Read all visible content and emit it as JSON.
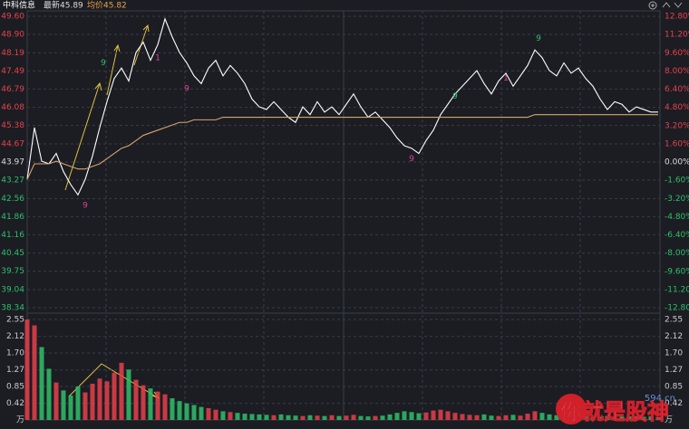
{
  "chart_data": [
    {
      "type": "line",
      "title": "中科信息",
      "latest_label": "最新45.89",
      "avg_label": "均价45.82",
      "base": 43.97,
      "ylim": [
        38.34,
        49.6
      ],
      "yticks": [
        {
          "value": 49.6,
          "label": "49.60"
        },
        {
          "value": 48.9,
          "label": "48.90"
        },
        {
          "value": 48.19,
          "label": "48.19"
        },
        {
          "value": 47.49,
          "label": "47.49"
        },
        {
          "value": 46.79,
          "label": "46.79"
        },
        {
          "value": 46.08,
          "label": "46.08"
        },
        {
          "value": 45.38,
          "label": "45.38"
        },
        {
          "value": 44.67,
          "label": "44.67"
        },
        {
          "value": 43.97,
          "label": "43.97"
        },
        {
          "value": 43.27,
          "label": "43.27"
        },
        {
          "value": 42.56,
          "label": "42.56"
        },
        {
          "value": 41.86,
          "label": "41.86"
        },
        {
          "value": 41.16,
          "label": "41.16"
        },
        {
          "value": 40.45,
          "label": "40.45"
        },
        {
          "value": 39.75,
          "label": "39.75"
        },
        {
          "value": 39.04,
          "label": "39.04"
        },
        {
          "value": 38.34,
          "label": "38.34"
        }
      ],
      "y2lim": [
        -12.8,
        12.8
      ],
      "y2ticks": [
        {
          "value": 12.8,
          "label": "12.80%"
        },
        {
          "value": 11.2,
          "label": "11.20%"
        },
        {
          "value": 9.6,
          "label": "9.60%"
        },
        {
          "value": 8,
          "label": "8.00%"
        },
        {
          "value": 6.4,
          "label": "6.40%"
        },
        {
          "value": 4.8,
          "label": "4.80%"
        },
        {
          "value": 3.2,
          "label": "3.20%"
        },
        {
          "value": 1.6,
          "label": "1.60%"
        },
        {
          "value": 0,
          "label": "0.00%"
        },
        {
          "value": -1.6,
          "label": "-1.60%"
        },
        {
          "value": -3.2,
          "label": "-3.20%"
        },
        {
          "value": -4.8,
          "label": "-4.80%"
        },
        {
          "value": -6.4,
          "label": "-6.40%"
        },
        {
          "value": -8,
          "label": "-8.00%"
        },
        {
          "value": -9.6,
          "label": "-9.60%"
        },
        {
          "value": -11.2,
          "label": "-11.20%"
        },
        {
          "value": -12.8,
          "label": "-12.80%"
        }
      ],
      "up_color": "#e8404a",
      "down_color": "#2fbf6a",
      "base_color": "#dddddd",
      "series": [
        {
          "color": "#ffffff",
          "values": [
            43.3,
            45.3,
            44.0,
            43.9,
            44.3,
            43.6,
            43.1,
            42.7,
            43.3,
            44.2,
            45.3,
            46.3,
            47.2,
            47.6,
            47.1,
            48.2,
            48.6,
            47.9,
            48.5,
            49.5,
            48.8,
            48.2,
            47.8,
            47.3,
            47.0,
            47.6,
            47.9,
            47.3,
            47.7,
            47.4,
            47.0,
            46.4,
            46.1,
            46.0,
            46.3,
            46.0,
            45.7,
            45.5,
            46.1,
            45.8,
            46.3,
            45.9,
            46.1,
            45.8,
            46.2,
            46.6,
            46.1,
            45.7,
            45.9,
            45.6,
            45.3,
            44.9,
            44.6,
            44.5,
            44.3,
            44.8,
            45.2,
            45.8,
            46.2,
            46.6,
            46.9,
            47.2,
            47.5,
            47.0,
            46.6,
            47.1,
            47.4,
            46.9,
            47.3,
            47.7,
            48.3,
            48.0,
            47.5,
            47.3,
            47.8,
            47.4,
            47.6,
            47.2,
            46.9,
            46.4,
            46.0,
            46.3,
            46.2,
            45.9,
            46.1,
            46.0,
            45.9,
            45.9
          ]
        },
        {
          "color": "#d9a56a",
          "values": [
            43.3,
            43.9,
            43.9,
            43.9,
            44.0,
            43.9,
            43.8,
            43.7,
            43.7,
            43.8,
            43.9,
            44.1,
            44.3,
            44.5,
            44.6,
            44.8,
            45.0,
            45.1,
            45.2,
            45.3,
            45.4,
            45.5,
            45.5,
            45.6,
            45.6,
            45.6,
            45.6,
            45.7,
            45.7,
            45.7,
            45.7,
            45.7,
            45.7,
            45.7,
            45.7,
            45.7,
            45.7,
            45.7,
            45.7,
            45.7,
            45.7,
            45.7,
            45.7,
            45.7,
            45.7,
            45.7,
            45.7,
            45.7,
            45.7,
            45.7,
            45.7,
            45.7,
            45.7,
            45.7,
            45.7,
            45.7,
            45.7,
            45.7,
            45.7,
            45.7,
            45.7,
            45.7,
            45.7,
            45.7,
            45.7,
            45.7,
            45.7,
            45.7,
            45.7,
            45.7,
            45.8,
            45.8,
            45.8,
            45.8,
            45.8,
            45.8,
            45.8,
            45.8,
            45.8,
            45.8,
            45.8,
            45.8,
            45.8,
            45.8,
            45.8,
            45.8,
            45.8,
            45.8
          ]
        }
      ],
      "annotations": [
        {
          "text": "9",
          "x": 10.5,
          "y": 47.8,
          "color": "#2fbf6a"
        },
        {
          "text": "9",
          "x": 8,
          "y": 42.3,
          "color": "#e0409a"
        },
        {
          "text": "9",
          "x": 22,
          "y": 46.8,
          "color": "#e0409a"
        },
        {
          "text": "9",
          "x": 53,
          "y": 44.1,
          "color": "#e0409a"
        },
        {
          "text": "9",
          "x": 59,
          "y": 46.5,
          "color": "#2fbf6a"
        },
        {
          "text": "9",
          "x": 70.5,
          "y": 48.75,
          "color": "#2fbf6a"
        },
        {
          "text": "1",
          "x": 18,
          "y": 48.0,
          "color": "#e0409a"
        },
        {
          "text": "1",
          "x": 66,
          "y": 47.2,
          "color": "#e0409a"
        }
      ]
    },
    {
      "type": "bar",
      "ylim": [
        0,
        2.55
      ],
      "yticks": [
        {
          "value": 2.55,
          "label": "2.55"
        },
        {
          "value": 2.12,
          "label": "2.12"
        },
        {
          "value": 1.7,
          "label": "1.70"
        },
        {
          "value": 1.27,
          "label": "1.27"
        },
        {
          "value": 0.85,
          "label": "0.85"
        },
        {
          "value": 0.42,
          "label": "0.42"
        },
        {
          "value": 0,
          "label": "万"
        }
      ],
      "values": [
        2.55,
        2.4,
        1.85,
        1.3,
        0.95,
        0.75,
        0.62,
        0.85,
        0.7,
        0.92,
        1.05,
        0.98,
        1.2,
        1.45,
        1.28,
        1.02,
        0.88,
        0.8,
        0.72,
        0.65,
        0.55,
        0.48,
        0.42,
        0.38,
        0.33,
        0.3,
        0.26,
        0.22,
        0.2,
        0.18,
        0.16,
        0.15,
        0.14,
        0.13,
        0.12,
        0.14,
        0.12,
        0.11,
        0.1,
        0.12,
        0.11,
        0.1,
        0.12,
        0.1,
        0.11,
        0.13,
        0.1,
        0.09,
        0.1,
        0.11,
        0.14,
        0.18,
        0.22,
        0.2,
        0.17,
        0.19,
        0.24,
        0.26,
        0.22,
        0.18,
        0.15,
        0.13,
        0.12,
        0.14,
        0.11,
        0.1,
        0.12,
        0.13,
        0.11,
        0.16,
        0.22,
        0.18,
        0.14,
        0.12,
        0.11,
        0.1,
        0.09,
        0.1,
        0.09,
        0.08,
        0.1,
        0.09,
        0.08,
        0.09,
        0.1,
        0.08,
        0.09,
        0.07
      ]
    },
    {
      "type": "watermark",
      "text": "你就是股神",
      "site": "594.cn"
    }
  ]
}
